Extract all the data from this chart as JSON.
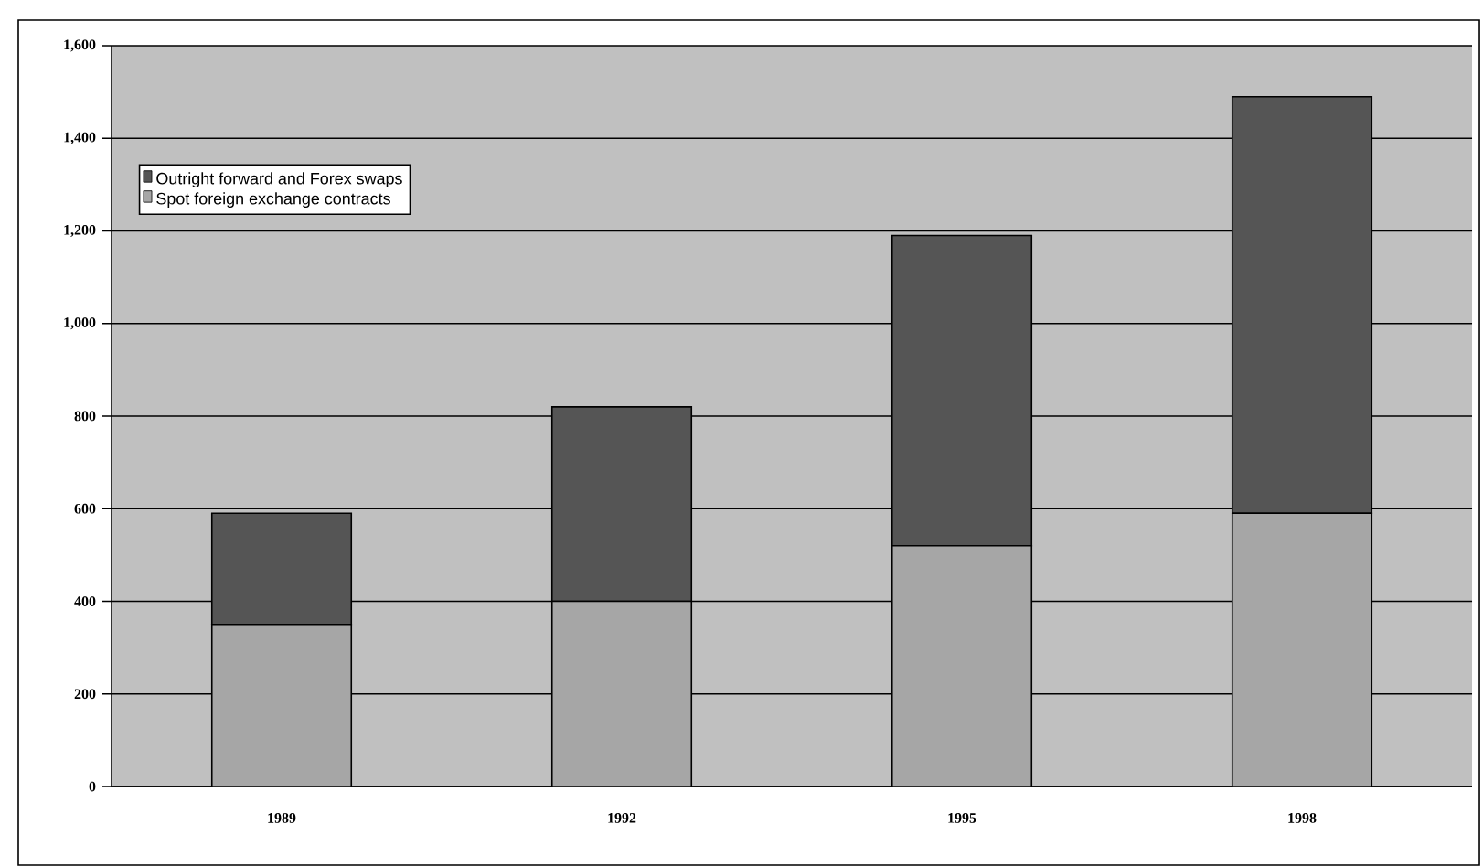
{
  "chart_data": {
    "type": "bar",
    "stacked": true,
    "categories": [
      "1989",
      "1992",
      "1995",
      "1998"
    ],
    "series": [
      {
        "name": "Spot foreign exchange contracts",
        "color": "#a6a6a6",
        "values": [
          350,
          400,
          520,
          590
        ]
      },
      {
        "name": "Outright forward and Forex swaps",
        "color": "#555555",
        "values": [
          240,
          420,
          670,
          900
        ]
      }
    ],
    "ylim": [
      0,
      1600
    ],
    "yticks": [
      0,
      200,
      400,
      600,
      800,
      {
        "value": 1000,
        "label": "1,000"
      },
      {
        "value": 1200,
        "label": "1,200"
      },
      {
        "value": 1400,
        "label": "1,400"
      },
      {
        "value": 1600,
        "label": "1,600"
      }
    ],
    "grid": "y",
    "legend": "top left"
  }
}
